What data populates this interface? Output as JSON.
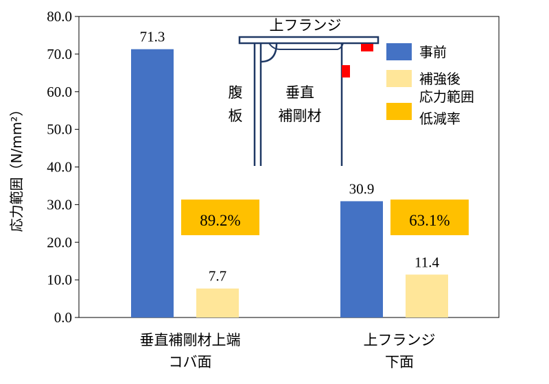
{
  "chart_data": {
    "type": "bar",
    "ylabel": "応力範囲（N/mm²）",
    "ylim": [
      0,
      80
    ],
    "ytick_labels": [
      "0.0",
      "10.0",
      "20.0",
      "30.0",
      "40.0",
      "50.0",
      "60.0",
      "70.0",
      "80.0"
    ],
    "categories": [
      [
        "垂直補剛材上端",
        "コバ面"
      ],
      [
        "上フランジ",
        "下面"
      ]
    ],
    "series": [
      {
        "name": "事前",
        "values": [
          71.3,
          30.9
        ],
        "labels": [
          "71.3",
          "30.9"
        ],
        "color": "#4472C4"
      },
      {
        "name": "補強後",
        "values": [
          7.7,
          11.4
        ],
        "labels": [
          "7.7",
          "11.4"
        ],
        "color": "#FFE699"
      }
    ],
    "reduction": {
      "name": [
        "応力範囲",
        "低減率"
      ],
      "values": [
        "89.2%",
        "63.1%"
      ],
      "color": "#FFC000"
    },
    "grid": false,
    "legend_position": "top-right",
    "diagram": {
      "flange_label": "上フランジ",
      "web_label": [
        "腹",
        "板"
      ],
      "stiffener_label": [
        "垂直",
        "補剛材"
      ],
      "line_color": "#1F3864",
      "marker_color": "#FF0000"
    }
  }
}
